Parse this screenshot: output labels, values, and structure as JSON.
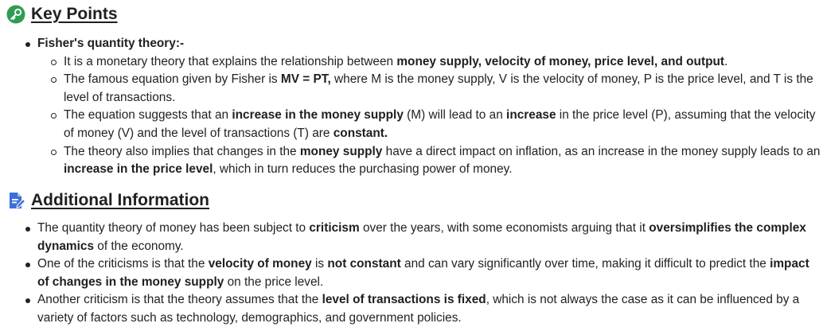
{
  "key_points": {
    "heading": "Key Points",
    "items": [
      {
        "title": "Fisher's quantity theory:-",
        "sub_items": [
          [
            {
              "t": "It is a monetary theory that explains the relationship between "
            },
            {
              "t": "money supply, velocity of money, price level, and output",
              "b": true
            },
            {
              "t": "."
            }
          ],
          [
            {
              "t": "The famous equation given by Fisher is "
            },
            {
              "t": "MV = PT,",
              "b": true
            },
            {
              "t": " where M is the money supply, V is the velocity of money, P is the price level, and T is the level of transactions."
            }
          ],
          [
            {
              "t": "The equation suggests that an "
            },
            {
              "t": "increase in the money supply",
              "b": true
            },
            {
              "t": " (M) will lead to an "
            },
            {
              "t": "increase",
              "b": true
            },
            {
              "t": " in the price level (P), assuming that the velocity of money (V) and the level of transactions (T) are "
            },
            {
              "t": "constant.",
              "b": true
            }
          ],
          [
            {
              "t": "The theory also implies that changes in the "
            },
            {
              "t": "money supply",
              "b": true
            },
            {
              "t": " have a direct impact on inflation, as an increase in the money supply leads to an "
            },
            {
              "t": "increase in the price level",
              "b": true
            },
            {
              "t": ", which in turn reduces the purchasing power of money."
            }
          ]
        ]
      }
    ]
  },
  "additional_information": {
    "heading": "Additional Information",
    "items": [
      [
        {
          "t": "The quantity theory of money has been subject to "
        },
        {
          "t": "criticism",
          "b": true
        },
        {
          "t": " over the years, with some economists arguing that it "
        },
        {
          "t": "oversimplifies the complex dynamics",
          "b": true
        },
        {
          "t": " of the economy."
        }
      ],
      [
        {
          "t": "One of the criticisms is that the "
        },
        {
          "t": "velocity of money",
          "b": true
        },
        {
          "t": " is "
        },
        {
          "t": "not constant",
          "b": true
        },
        {
          "t": " and can vary significantly over time, making it difficult to predict the "
        },
        {
          "t": "impact of changes in the money supply",
          "b": true
        },
        {
          "t": " on the price level."
        }
      ],
      [
        {
          "t": "Another criticism is that the theory assumes that the "
        },
        {
          "t": "level of transactions is fixed",
          "b": true
        },
        {
          "t": ", which is not always the case as it can be influenced by a variety of factors such as technology, demographics, and government policies."
        }
      ]
    ]
  },
  "icons": {
    "key_points": "key-icon",
    "additional_information": "document-edit-icon"
  },
  "colors": {
    "key_icon_bg": "#2e9d4f",
    "doc_icon": "#3b6fd8",
    "text": "#222222"
  }
}
